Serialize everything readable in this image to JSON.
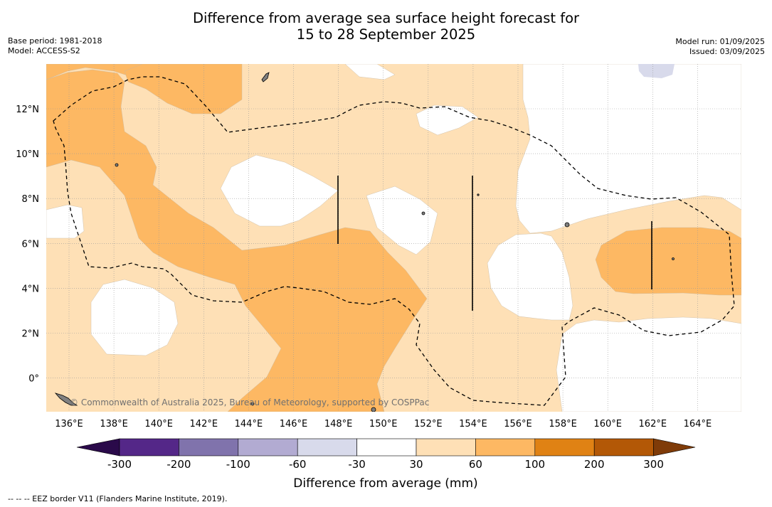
{
  "title": {
    "line1": "Difference from average sea surface height forecast for",
    "line2": "15 to 28 September 2025"
  },
  "meta_left": {
    "line1": "Base period: 1981-2018",
    "line2": "Model: ACCESS-S2"
  },
  "meta_right": {
    "line1": "Model run: 01/09/2025",
    "line2": "Issued: 03/09/2025"
  },
  "map": {
    "lon_ticks": [
      "136°E",
      "138°E",
      "140°E",
      "142°E",
      "144°E",
      "146°E",
      "148°E",
      "150°E",
      "152°E",
      "154°E",
      "156°E",
      "158°E",
      "160°E",
      "162°E",
      "164°E"
    ],
    "lat_ticks": [
      "12°N",
      "10°N",
      "8°N",
      "6°N",
      "4°N",
      "2°N",
      "0°"
    ],
    "watermark": "© Commonwealth of Australia 2025, Bureau of Meteorology, supported by COSPPac"
  },
  "colorbar": {
    "title": "Difference from average (mm)",
    "labels": [
      "-300",
      "-200",
      "-100",
      "-60",
      "-30",
      "30",
      "60",
      "100",
      "200",
      "300"
    ],
    "colors": {
      "under": "#2a0a4a",
      "bins": [
        "#542788",
        "#8073ac",
        "#b2abd2",
        "#d8daeb",
        "#ffffff",
        "#fee0b6",
        "#fdb863",
        "#e08214",
        "#b35806"
      ],
      "over": "#7f3b08"
    }
  },
  "footnote": "--  --  -- EEZ border V11 (Flanders Marine Institute, 2019).",
  "colors": {
    "low_anomaly": "#fee0b6",
    "mid_anomaly": "#fdb863",
    "land": "#808080"
  }
}
